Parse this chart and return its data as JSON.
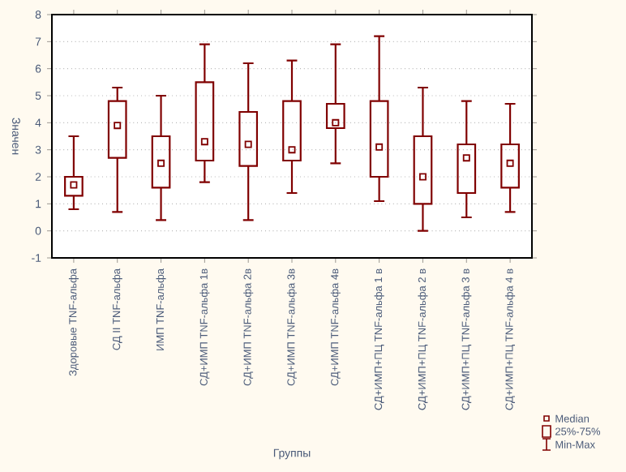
{
  "chart_data": {
    "type": "box",
    "xlabel": "Группы",
    "ylabel": "Значен",
    "categories": [
      "Здоровые TNF-альфа",
      "СД II  TNF-альфа",
      "ИМП TNF-альфа",
      "СД+ИМП TNF-альфа 1в",
      "СД+ИМП TNF-альфа 2в",
      "СД+ИМП TNF-альфа 3в",
      "СД+ИМП TNF-альфа 4в",
      "СД+ИМП+ПЦ  TNF-альфа 1 в",
      "СД+ИМП+ПЦ  TNF-альфа 2 в",
      "СД+ИМП+ПЦ  TNF-альфа 3 в",
      "СД+ИМП+ПЦ  TNF-альфа 4 в"
    ],
    "color": "#800000",
    "boxes": [
      {
        "low": 0.8,
        "q1": 1.3,
        "median": 1.7,
        "q3": 2.0,
        "high": 3.5
      },
      {
        "low": 0.7,
        "q1": 2.7,
        "median": 3.9,
        "q3": 4.8,
        "high": 5.3
      },
      {
        "low": 0.4,
        "q1": 1.6,
        "median": 2.5,
        "q3": 3.5,
        "high": 5.0
      },
      {
        "low": 1.8,
        "q1": 2.6,
        "median": 3.3,
        "q3": 5.5,
        "high": 6.9
      },
      {
        "low": 0.4,
        "q1": 2.4,
        "median": 3.2,
        "q3": 4.4,
        "high": 6.2
      },
      {
        "low": 1.4,
        "q1": 2.6,
        "median": 3.0,
        "q3": 4.8,
        "high": 6.3
      },
      {
        "low": 2.5,
        "q1": 3.8,
        "median": 4.0,
        "q3": 4.7,
        "high": 6.9
      },
      {
        "low": 1.1,
        "q1": 2.0,
        "median": 3.1,
        "q3": 4.8,
        "high": 7.2
      },
      {
        "low": 0.0,
        "q1": 1.0,
        "median": 2.0,
        "q3": 3.5,
        "high": 5.3
      },
      {
        "low": 0.5,
        "q1": 1.4,
        "median": 2.7,
        "q3": 3.2,
        "high": 4.8
      },
      {
        "low": 0.7,
        "q1": 1.6,
        "median": 2.5,
        "q3": 3.2,
        "high": 4.7
      }
    ],
    "ylim": [
      -1,
      8
    ],
    "yticks": [
      -1,
      0,
      1,
      2,
      3,
      4,
      5,
      6,
      7,
      8
    ],
    "grid": "y",
    "annotations": [
      "Median",
      "25%-75%",
      "Min-Max"
    ]
  }
}
